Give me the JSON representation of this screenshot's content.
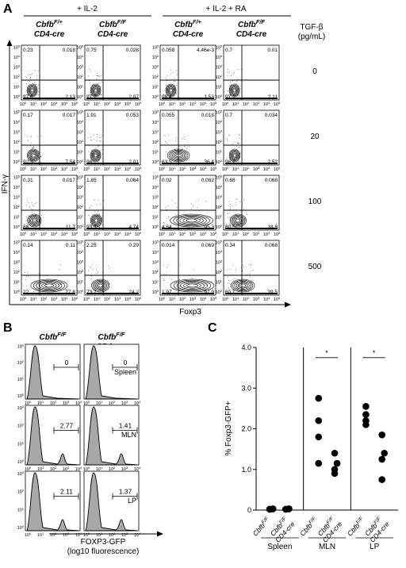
{
  "panelA": {
    "letter": "A",
    "cond_il2": "+ IL-2",
    "cond_il2ra": "+ IL-2 + RA",
    "col_headers": [
      {
        "gene": "Cbfb",
        "sup": "F/+",
        "sub": "CD4-cre"
      },
      {
        "gene": "Cbfb",
        "sup": "F/F",
        "sub": "CD4-cre"
      },
      {
        "gene": "Cbfb",
        "sup": "F/+",
        "sub": "CD4-cre"
      },
      {
        "gene": "Cbfb",
        "sup": "F/F",
        "sub": "CD4-cre"
      }
    ],
    "tgf_label_1": "TGF-β",
    "tgf_label_2": "(pg/mL)",
    "tgf_rows": [
      "0",
      "20",
      "100",
      "500"
    ],
    "y_axis_label": "IFN-γ",
    "x_axis_label": "Foxp3",
    "tick_exp": [
      "0",
      "1",
      "2",
      "3",
      "4",
      "5"
    ],
    "plots": [
      [
        {
          "ul": "0.23",
          "ur": "0.018",
          "ll": "97.6",
          "lr": "2.13",
          "spread": 0.02
        },
        {
          "ul": "0.75",
          "ur": "0.028",
          "ll": "97.2",
          "lr": "2.07",
          "spread": 0.02
        },
        {
          "ul": "0.058",
          "ur": "4.46e-3",
          "ll": "98.4",
          "lr": "1.53",
          "spread": 0.02
        },
        {
          "ul": "0.7",
          "ur": "0.01",
          "ll": "97.2",
          "lr": "2.11",
          "spread": 0.02
        }
      ],
      [
        {
          "ul": "0.17",
          "ur": "0.017",
          "ll": "92.3",
          "lr": "7.54",
          "spread": 0.08
        },
        {
          "ul": "1.91",
          "ur": "0.053",
          "ll": "96",
          "lr": "2.01",
          "spread": 0.02
        },
        {
          "ul": "0.055",
          "ur": "0.018",
          "ll": "63.5",
          "lr": "36.4",
          "spread": 0.36
        },
        {
          "ul": "0.7",
          "ur": "0.034",
          "ll": "96.7",
          "lr": "2.52",
          "spread": 0.03
        }
      ],
      [
        {
          "ul": "0.31",
          "ur": "0.017",
          "ll": "88",
          "lr": "11.7",
          "spread": 0.12
        },
        {
          "ul": "1.85",
          "ur": "0.064",
          "ll": "93.3",
          "lr": "4.74",
          "spread": 0.05
        },
        {
          "ul": "0.02",
          "ur": "0.082",
          "ll": "4.64",
          "lr": "95.3",
          "spread": 0.95
        },
        {
          "ul": "0.68",
          "ur": "0.068",
          "ll": "80.5",
          "lr": "18.8",
          "spread": 0.19
        }
      ],
      [
        {
          "ul": "0.14",
          "ur": "0.11",
          "ll": "22",
          "lr": "77.8",
          "spread": 0.78
        },
        {
          "ul": "2.25",
          "ur": "0.29",
          "ll": "73.2",
          "lr": "24.2",
          "spread": 0.24
        },
        {
          "ul": "0.014",
          "ur": "0.069",
          "ll": "1.97",
          "lr": "97.9",
          "spread": 0.98
        },
        {
          "ul": "0.34",
          "ur": "0.068",
          "ll": "60.1",
          "lr": "39.5",
          "spread": 0.4
        }
      ]
    ]
  },
  "panelB": {
    "letter": "B",
    "col_headers": [
      {
        "gene": "Cbfb",
        "sup": "F/F",
        "sub": ""
      },
      {
        "gene": "Cbfb",
        "sup": "F/F",
        "sub": "CD4-cre"
      }
    ],
    "tissues": [
      "Spleen",
      "MLN",
      "LP"
    ],
    "gate_values": [
      [
        "0",
        "0"
      ],
      [
        "2.77",
        "1.41"
      ],
      [
        "2.11",
        "1.37"
      ]
    ],
    "x_axis_label": "FOXP3-GFP",
    "x_axis_sub": "(log10 fluorescence)",
    "tick_exp": [
      "0",
      "1",
      "2",
      "3",
      "4"
    ]
  },
  "panelC": {
    "letter": "C",
    "chart_data": {
      "type": "scatter",
      "ylabel": "% Foxp3-GFP+",
      "ylim": [
        0,
        4.0
      ],
      "yticks": [
        "0",
        "1.0",
        "2.0",
        "3.0",
        "4.0"
      ],
      "tissues": [
        "Spleen",
        "MLN",
        "LP"
      ],
      "genotype_labels": [
        {
          "gene": "Cbfb",
          "sup": "F/F",
          "sub": ""
        },
        {
          "gene": "Cbfb",
          "sup": "F/F",
          "sub": "CD4-cre"
        }
      ],
      "groups": [
        {
          "tissue": "Spleen",
          "wt": [
            0.02,
            0.03,
            0.02,
            0.03
          ],
          "ko": [
            0.02,
            0.03,
            0.02,
            0.03
          ],
          "sig": ""
        },
        {
          "tissue": "MLN",
          "wt": [
            2.75,
            2.2,
            1.8,
            1.15
          ],
          "ko": [
            1.4,
            1.15,
            1.0,
            0.9
          ],
          "sig": "*"
        },
        {
          "tissue": "LP",
          "wt": [
            2.55,
            2.35,
            2.2,
            2.1
          ],
          "ko": [
            1.85,
            1.4,
            1.25,
            0.75
          ],
          "sig": "*"
        }
      ]
    }
  }
}
